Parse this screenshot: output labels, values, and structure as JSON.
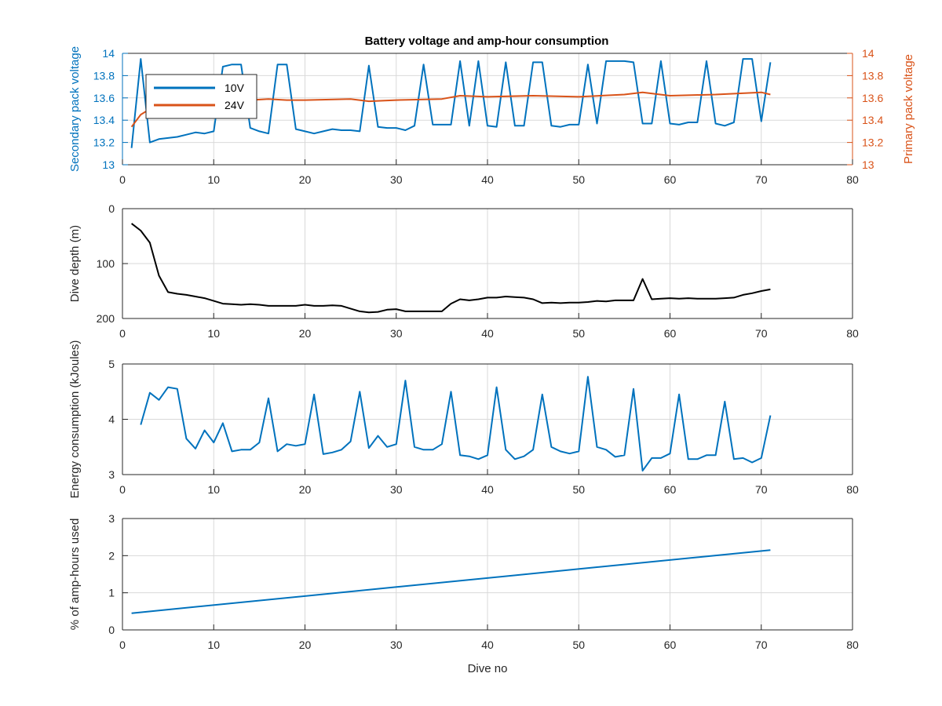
{
  "figure": {
    "title": "Battery voltage and amp-hour consumption",
    "xlabel": "Dive no"
  },
  "colors": {
    "blue": "#0072BD",
    "orange": "#D95319",
    "black": "#000000",
    "grid": "#d9d9d9",
    "axis": "#262626"
  },
  "chart_data": [
    {
      "type": "line",
      "title": "Battery voltage and amp-hour consumption",
      "xlabel": "",
      "ylabel": "Secondary pack voltage",
      "ylabel_right": "Primary pack voltage",
      "xlim": [
        0,
        80
      ],
      "ylim": [
        13,
        14
      ],
      "ylim_right": [
        13,
        14
      ],
      "xticks": [
        "0",
        "10",
        "20",
        "30",
        "40",
        "50",
        "60",
        "70",
        "80"
      ],
      "yticks": [
        "13",
        "13.2",
        "13.4",
        "13.6",
        "13.8",
        "14"
      ],
      "yticks_right": [
        "13",
        "13.2",
        "13.4",
        "13.6",
        "13.8",
        "14"
      ],
      "grid": true,
      "legend": "top-left",
      "series": [
        {
          "name": "10V",
          "color": "#0072BD",
          "axis": "left",
          "x": [
            1,
            2,
            3,
            4,
            5,
            6,
            7,
            8,
            9,
            10,
            11,
            12,
            13,
            14,
            15,
            16,
            17,
            18,
            19,
            20,
            21,
            22,
            23,
            24,
            25,
            26,
            27,
            28,
            29,
            30,
            31,
            32,
            33,
            34,
            35,
            36,
            37,
            38,
            39,
            40,
            41,
            42,
            43,
            44,
            45,
            46,
            47,
            48,
            49,
            50,
            51,
            52,
            53,
            54,
            55,
            56,
            57,
            58,
            59,
            60,
            61,
            62,
            63,
            64,
            65,
            66,
            67,
            68,
            69,
            70,
            71
          ],
          "y": [
            13.15,
            13.95,
            13.2,
            13.23,
            13.24,
            13.25,
            13.27,
            13.29,
            13.28,
            13.3,
            13.88,
            13.9,
            13.9,
            13.33,
            13.3,
            13.28,
            13.9,
            13.9,
            13.32,
            13.3,
            13.28,
            13.3,
            13.32,
            13.31,
            13.31,
            13.3,
            13.89,
            13.34,
            13.33,
            13.33,
            13.31,
            13.35,
            13.9,
            13.36,
            13.36,
            13.36,
            13.93,
            13.35,
            13.93,
            13.35,
            13.34,
            13.92,
            13.35,
            13.35,
            13.92,
            13.92,
            13.35,
            13.34,
            13.36,
            13.36,
            13.9,
            13.37,
            13.93,
            13.93,
            13.93,
            13.92,
            13.37,
            13.37,
            13.93,
            13.37,
            13.36,
            13.38,
            13.38,
            13.93,
            13.37,
            13.35,
            13.38,
            13.95,
            13.95,
            13.39,
            13.92
          ]
        },
        {
          "name": "24V",
          "color": "#D95319",
          "axis": "right",
          "x": [
            1,
            2,
            3,
            4,
            5,
            6,
            7,
            8,
            9,
            10,
            12,
            14,
            16,
            18,
            20,
            25,
            27,
            30,
            35,
            37,
            40,
            45,
            50,
            55,
            57,
            60,
            65,
            70,
            71
          ],
          "y": [
            13.34,
            13.45,
            13.5,
            13.53,
            13.55,
            13.56,
            13.57,
            13.58,
            13.58,
            13.58,
            13.58,
            13.58,
            13.59,
            13.58,
            13.58,
            13.59,
            13.57,
            13.58,
            13.59,
            13.62,
            13.61,
            13.62,
            13.61,
            13.63,
            13.65,
            13.62,
            13.63,
            13.65,
            13.63
          ]
        }
      ]
    },
    {
      "type": "line",
      "xlabel": "",
      "ylabel": "Dive depth (m)",
      "xlim": [
        0,
        80
      ],
      "ylim": [
        0,
        200
      ],
      "y_reversed": true,
      "xticks": [
        "0",
        "10",
        "20",
        "30",
        "40",
        "50",
        "60",
        "70",
        "80"
      ],
      "yticks": [
        "0",
        "100",
        "200"
      ],
      "grid": true,
      "series": [
        {
          "color": "#000000",
          "x": [
            1,
            2,
            3,
            4,
            5,
            6,
            7,
            8,
            9,
            10,
            11,
            12,
            13,
            14,
            15,
            16,
            17,
            18,
            19,
            20,
            21,
            22,
            23,
            24,
            25,
            26,
            27,
            28,
            29,
            30,
            31,
            32,
            33,
            34,
            35,
            36,
            37,
            38,
            39,
            40,
            41,
            42,
            43,
            44,
            45,
            46,
            47,
            48,
            49,
            50,
            51,
            52,
            53,
            54,
            55,
            56,
            57,
            58,
            59,
            60,
            61,
            62,
            63,
            64,
            65,
            66,
            67,
            68,
            69,
            70,
            71
          ],
          "y": [
            27,
            40,
            62,
            122,
            152,
            155,
            157,
            160,
            163,
            168,
            173,
            174,
            175,
            174,
            175,
            177,
            177,
            177,
            177,
            175,
            177,
            177,
            176,
            177,
            182,
            187,
            189,
            188,
            184,
            183,
            187,
            187,
            187,
            187,
            187,
            173,
            165,
            167,
            165,
            162,
            162,
            160,
            161,
            162,
            165,
            172,
            171,
            172,
            171,
            171,
            170,
            168,
            169,
            167,
            167,
            167,
            128,
            165,
            164,
            163,
            164,
            163,
            164,
            164,
            164,
            163,
            162,
            157,
            154,
            150,
            147
          ]
        }
      ]
    },
    {
      "type": "line",
      "xlabel": "",
      "ylabel": "Energy consumption (kJoules)",
      "xlim": [
        0,
        80
      ],
      "ylim": [
        3,
        5
      ],
      "xticks": [
        "0",
        "10",
        "20",
        "30",
        "40",
        "50",
        "60",
        "70",
        "80"
      ],
      "yticks": [
        "3",
        "4",
        "5"
      ],
      "grid": true,
      "series": [
        {
          "color": "#0072BD",
          "x": [
            2,
            3,
            4,
            5,
            6,
            7,
            8,
            9,
            10,
            11,
            12,
            13,
            14,
            15,
            16,
            17,
            18,
            19,
            20,
            21,
            22,
            23,
            24,
            25,
            26,
            27,
            28,
            29,
            30,
            31,
            32,
            33,
            34,
            35,
            36,
            37,
            38,
            39,
            40,
            41,
            42,
            43,
            44,
            45,
            46,
            47,
            48,
            49,
            50,
            51,
            52,
            53,
            54,
            55,
            56,
            57,
            58,
            59,
            60,
            61,
            62,
            63,
            64,
            65,
            66,
            67,
            68,
            69,
            70,
            71
          ],
          "y": [
            3.9,
            4.48,
            4.35,
            4.58,
            4.55,
            3.65,
            3.47,
            3.8,
            3.58,
            3.93,
            3.42,
            3.45,
            3.45,
            3.58,
            4.38,
            3.42,
            3.55,
            3.52,
            3.55,
            4.45,
            3.37,
            3.4,
            3.45,
            3.6,
            4.5,
            3.48,
            3.7,
            3.5,
            3.55,
            4.7,
            3.5,
            3.45,
            3.45,
            3.55,
            4.5,
            3.35,
            3.33,
            3.28,
            3.35,
            4.58,
            3.45,
            3.28,
            3.33,
            3.45,
            4.45,
            3.5,
            3.42,
            3.38,
            3.42,
            4.77,
            3.5,
            3.45,
            3.32,
            3.35,
            4.55,
            3.07,
            3.3,
            3.3,
            3.38,
            4.45,
            3.28,
            3.28,
            3.35,
            3.35,
            4.32,
            3.28,
            3.3,
            3.22,
            3.3,
            4.07
          ]
        }
      ]
    },
    {
      "type": "line",
      "xlabel": "Dive no",
      "ylabel": "% of amp-hours used",
      "xlim": [
        0,
        80
      ],
      "ylim": [
        0,
        3
      ],
      "xticks": [
        "0",
        "10",
        "20",
        "30",
        "40",
        "50",
        "60",
        "70",
        "80"
      ],
      "yticks": [
        "0",
        "1",
        "2",
        "3"
      ],
      "grid": true,
      "series": [
        {
          "color": "#0072BD",
          "x": [
            1,
            71
          ],
          "y": [
            0.45,
            2.15
          ]
        }
      ]
    }
  ]
}
